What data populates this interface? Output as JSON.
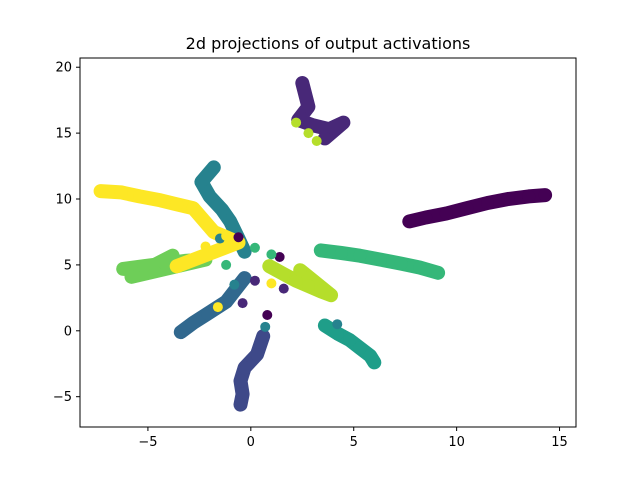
{
  "chart_data": {
    "type": "scatter",
    "title": "2d projections of output activations",
    "xlabel": "",
    "ylabel": "",
    "xlim": [
      -8.3,
      15.8
    ],
    "ylim": [
      -7.3,
      20.7
    ],
    "xticks": [
      -5,
      0,
      5,
      10,
      15
    ],
    "xtick_labels": [
      "−5",
      "0",
      "5",
      "10",
      "15"
    ],
    "yticks": [
      -5,
      0,
      5,
      10,
      15,
      20
    ],
    "ytick_labels": [
      "−5",
      "0",
      "5",
      "10",
      "15",
      "20"
    ],
    "grid": false,
    "legend": "none",
    "clusters": [
      {
        "color": "#440154",
        "points": [
          [
            7.7,
            8.3
          ],
          [
            8.5,
            8.6
          ],
          [
            9.5,
            8.9
          ],
          [
            10.5,
            9.3
          ],
          [
            11.5,
            9.7
          ],
          [
            12.5,
            10.0
          ],
          [
            13.5,
            10.2
          ],
          [
            14.3,
            10.3
          ]
        ]
      },
      {
        "color": "#482878",
        "points": [
          [
            2.5,
            18.8
          ],
          [
            2.8,
            17.0
          ],
          [
            2.3,
            16.0
          ],
          [
            3.0,
            15.6
          ],
          [
            3.8,
            15.3
          ],
          [
            4.5,
            15.8
          ],
          [
            3.6,
            14.6
          ]
        ]
      },
      {
        "color": "#3e4989",
        "points": [
          [
            0.6,
            -0.4
          ],
          [
            0.3,
            -1.8
          ],
          [
            -0.3,
            -2.8
          ],
          [
            -0.5,
            -3.8
          ],
          [
            -0.4,
            -4.8
          ],
          [
            -0.5,
            -5.6
          ]
        ]
      },
      {
        "color": "#31688e",
        "points": [
          [
            -3.4,
            -0.1
          ],
          [
            -2.8,
            0.6
          ],
          [
            -2.1,
            1.3
          ],
          [
            -1.2,
            2.2
          ],
          [
            -0.7,
            3.2
          ],
          [
            -0.3,
            4.0
          ]
        ]
      },
      {
        "color": "#26828e",
        "points": [
          [
            -1.8,
            12.4
          ],
          [
            -2.4,
            11.3
          ],
          [
            -2.0,
            10.2
          ],
          [
            -1.4,
            9.2
          ],
          [
            -1.0,
            8.3
          ],
          [
            -0.6,
            7.0
          ],
          [
            -0.3,
            6.0
          ]
        ]
      },
      {
        "color": "#1f9e89",
        "points": [
          [
            3.6,
            0.4
          ],
          [
            4.2,
            -0.2
          ],
          [
            4.8,
            -0.7
          ],
          [
            5.3,
            -1.3
          ],
          [
            5.8,
            -1.9
          ],
          [
            6.0,
            -2.4
          ]
        ]
      },
      {
        "color": "#35b779",
        "points": [
          [
            3.4,
            6.1
          ],
          [
            4.4,
            5.9
          ],
          [
            5.3,
            5.7
          ],
          [
            6.3,
            5.4
          ],
          [
            7.3,
            5.1
          ],
          [
            8.2,
            4.8
          ],
          [
            9.1,
            4.4
          ]
        ]
      },
      {
        "color": "#6ece58",
        "points": [
          [
            -6.2,
            4.7
          ],
          [
            -5.2,
            4.9
          ],
          [
            -4.2,
            5.1
          ],
          [
            -3.2,
            5.3
          ],
          [
            -2.2,
            5.4
          ],
          [
            -5.8,
            4.1
          ],
          [
            -3.8,
            5.7
          ]
        ]
      },
      {
        "color": "#b5de2b",
        "points": [
          [
            0.9,
            4.9
          ],
          [
            1.6,
            4.3
          ],
          [
            2.2,
            3.8
          ],
          [
            2.8,
            3.4
          ],
          [
            3.4,
            3.0
          ],
          [
            3.9,
            2.7
          ],
          [
            2.4,
            4.6
          ]
        ]
      },
      {
        "color": "#fde725",
        "points": [
          [
            -7.3,
            10.6
          ],
          [
            -6.3,
            10.5
          ],
          [
            -5.4,
            10.2
          ],
          [
            -4.4,
            9.9
          ],
          [
            -3.6,
            9.6
          ],
          [
            -2.8,
            9.3
          ],
          [
            -1.8,
            7.5
          ],
          [
            -0.6,
            6.7
          ],
          [
            -3.6,
            4.9
          ]
        ]
      }
    ],
    "stray_points": [
      {
        "color": "#b5de2b",
        "points": [
          [
            2.2,
            15.8
          ],
          [
            2.8,
            15.0
          ],
          [
            3.2,
            14.4
          ]
        ]
      },
      {
        "color": "#26828e",
        "points": [
          [
            0.7,
            0.3
          ],
          [
            -1.5,
            7.0
          ],
          [
            4.2,
            0.5
          ],
          [
            -0.8,
            3.5
          ]
        ]
      },
      {
        "color": "#fde725",
        "points": [
          [
            -2.2,
            6.4
          ],
          [
            -1.2,
            7.2
          ],
          [
            1.0,
            3.6
          ],
          [
            -1.6,
            1.8
          ]
        ]
      },
      {
        "color": "#440154",
        "points": [
          [
            -0.6,
            7.1
          ],
          [
            1.4,
            5.6
          ],
          [
            0.8,
            1.2
          ]
        ]
      },
      {
        "color": "#482878",
        "points": [
          [
            1.6,
            3.2
          ],
          [
            -0.4,
            2.1
          ],
          [
            0.2,
            3.8
          ]
        ]
      },
      {
        "color": "#35b779",
        "points": [
          [
            1.0,
            5.8
          ],
          [
            -1.2,
            5.0
          ],
          [
            0.2,
            6.3
          ]
        ]
      }
    ]
  }
}
